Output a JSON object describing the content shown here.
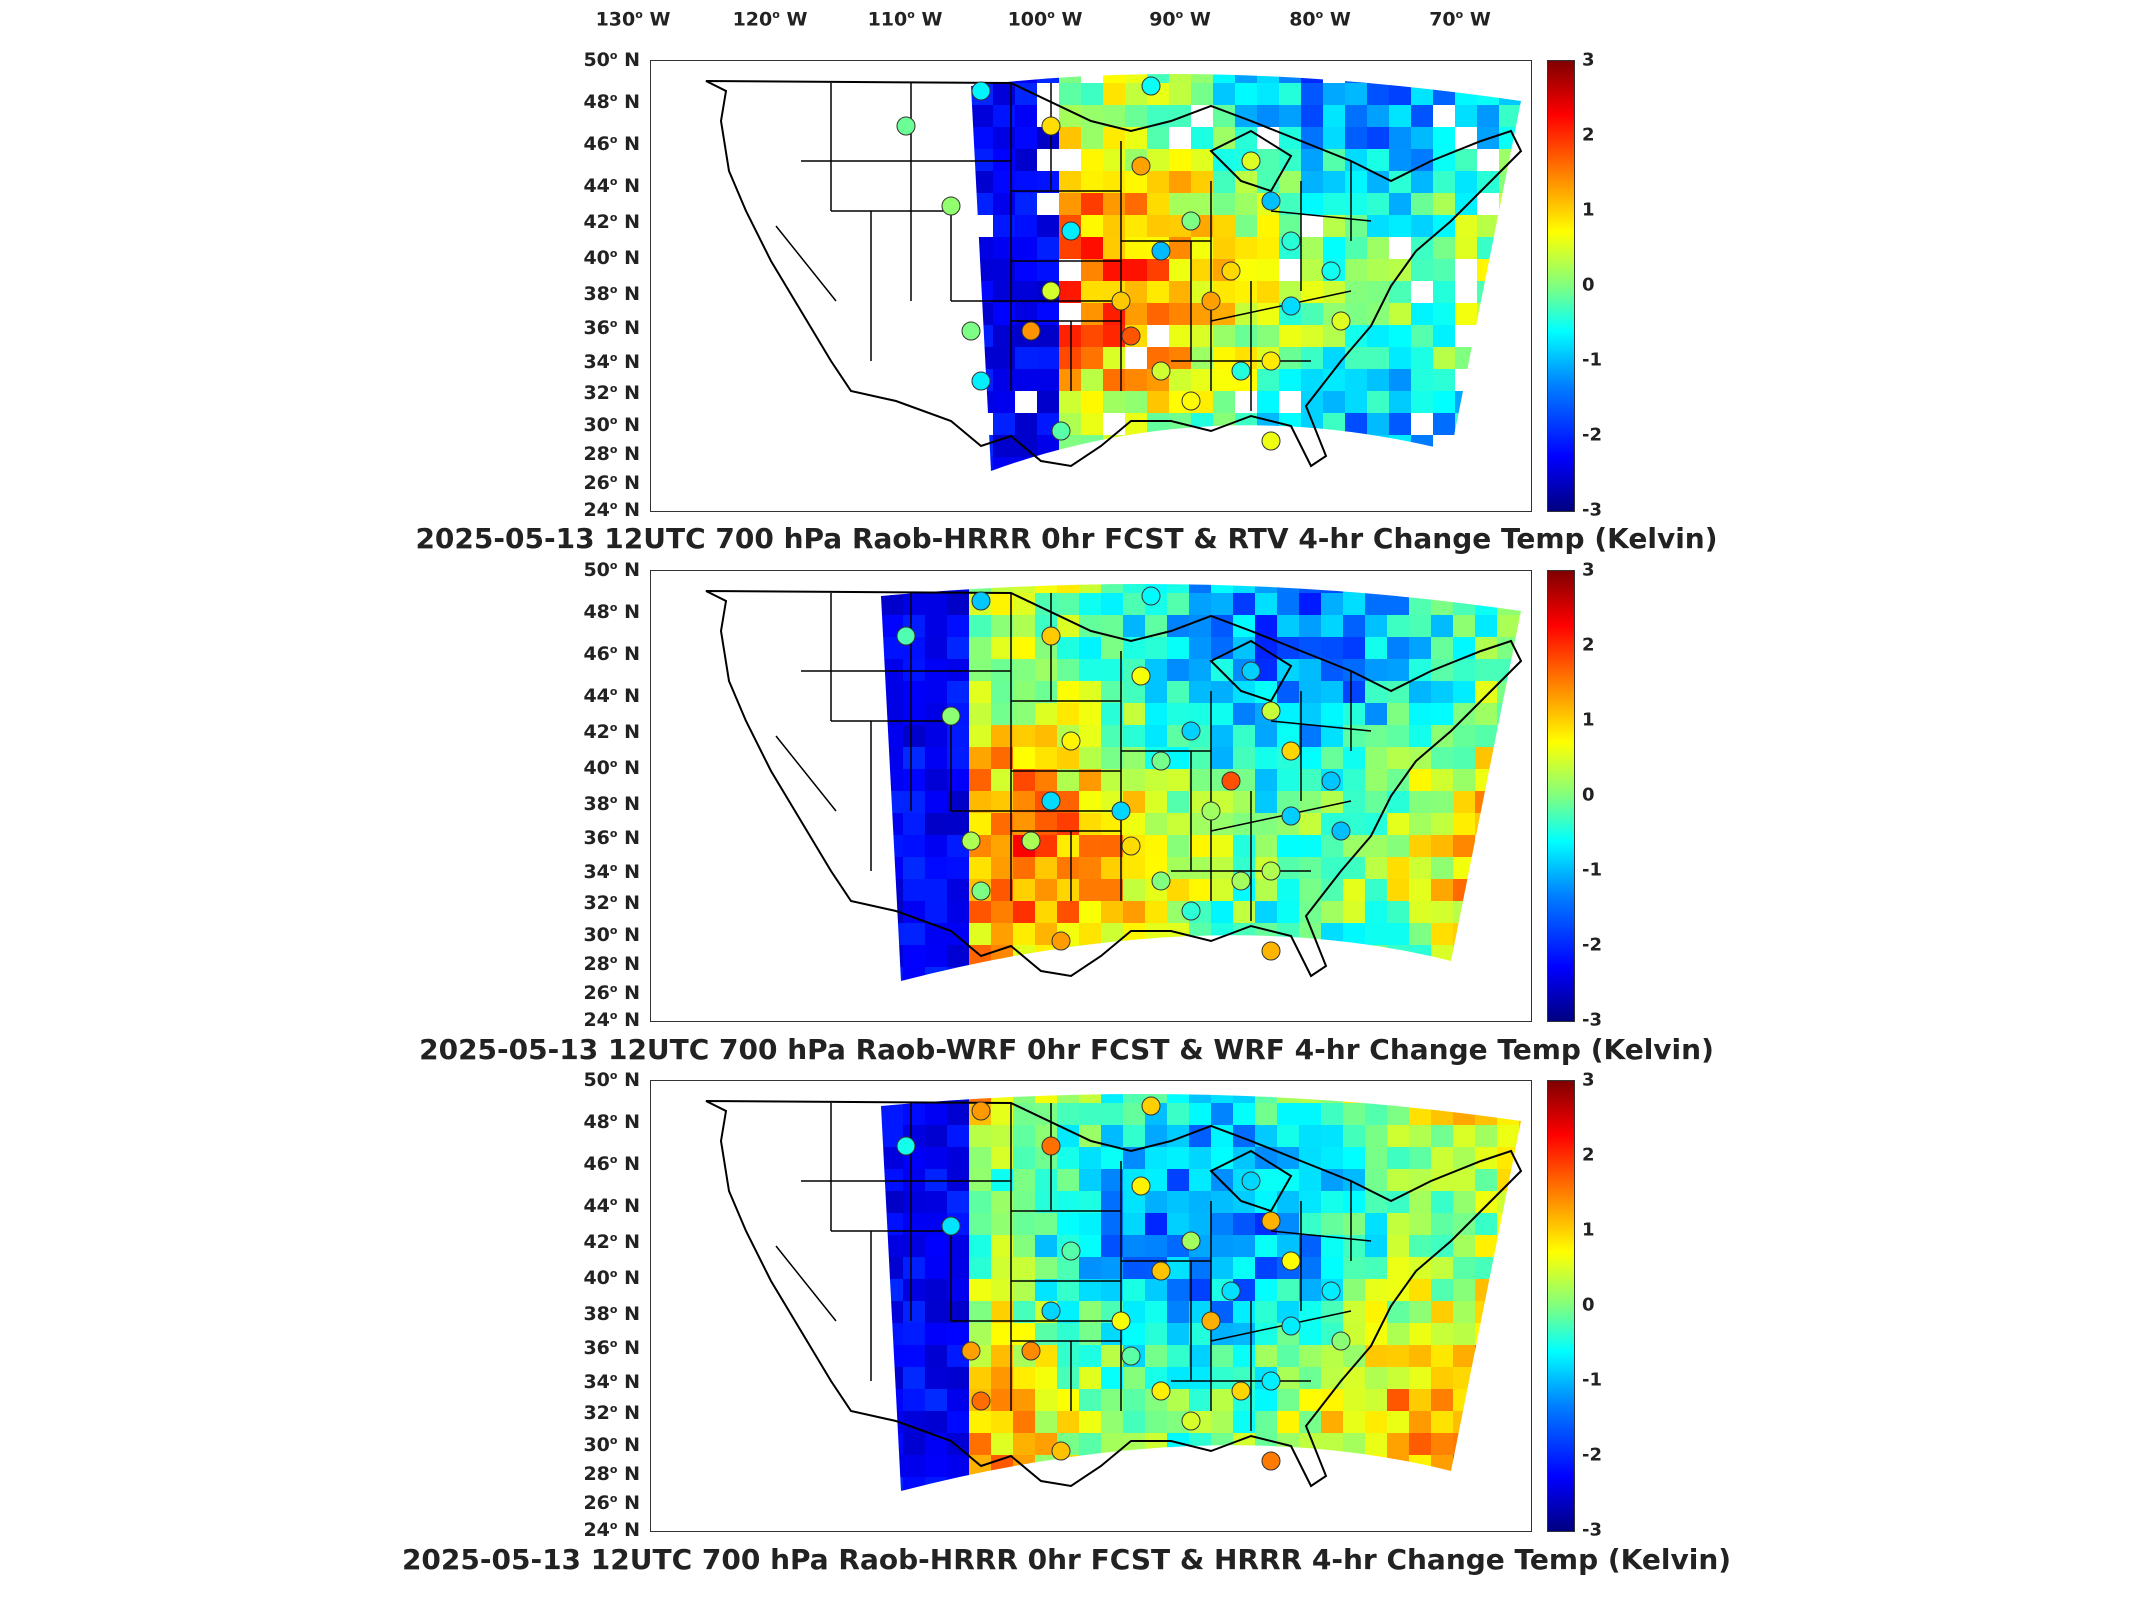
{
  "lon_labels": [
    "130",
    "120",
    "110",
    "100",
    "90",
    "80",
    "70"
  ],
  "lon_suffix": "W",
  "lat_labels": [
    "50",
    "48",
    "46",
    "44",
    "42",
    "40",
    "38",
    "36",
    "34",
    "32",
    "30",
    "28",
    "26",
    "24"
  ],
  "lat_suffix": "N",
  "colorbar_ticks": [
    "3",
    "2",
    "1",
    "0",
    "-1",
    "-2",
    "-3"
  ],
  "colorbar_range": [
    -3,
    3
  ],
  "colormap": [
    "#000080",
    "#0000ff",
    "#0080ff",
    "#00ffff",
    "#80ff80",
    "#ffff00",
    "#ff8000",
    "#ff0000",
    "#800000"
  ],
  "panels": [
    {
      "title": "2025-05-13 12UTC 700 hPa Raob-HRRR 0hr FCST & RTV 4-hr Change Temp (Kelvin)",
      "field_style": "sparse"
    },
    {
      "title": "2025-05-13 12UTC 700 hPa Raob-WRF 0hr FCST & WRF 4-hr Change Temp (Kelvin)",
      "field_style": "full"
    },
    {
      "title": "2025-05-13 12UTC 700 hPa Raob-HRRR 0hr FCST & HRRR 4-hr Change Temp (Kelvin)",
      "field_style": "full"
    }
  ]
}
